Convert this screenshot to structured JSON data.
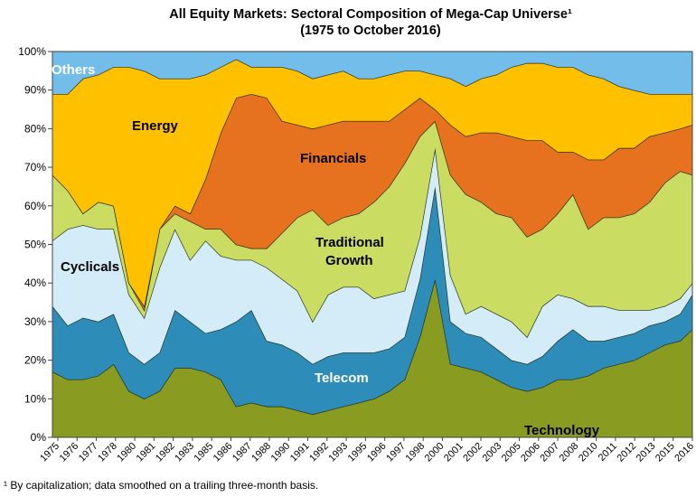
{
  "chart_data": {
    "type": "area",
    "stacked": true,
    "title": "All Equity Markets: Sectoral Composition of Mega-Cap Universe¹",
    "subtitle": "(1975 to October 2016)",
    "xlabel": "",
    "ylabel": "",
    "ylim": [
      0,
      100
    ],
    "yticks": [
      "0%",
      "10%",
      "20%",
      "30%",
      "40%",
      "50%",
      "60%",
      "70%",
      "80%",
      "90%",
      "100%"
    ],
    "xticks": [
      "1975",
      "1976",
      "1977",
      "1978",
      "1980",
      "1981",
      "1982",
      "1983",
      "1985",
      "1986",
      "1987",
      "1988",
      "1990",
      "1991",
      "1992",
      "1993",
      "1995",
      "1996",
      "1997",
      "1998",
      "2000",
      "2001",
      "2002",
      "2003",
      "2005",
      "2006",
      "2007",
      "2008",
      "2010",
      "2011",
      "2012",
      "2013",
      "2015",
      "2016"
    ],
    "x": [
      1975,
      1976,
      1977,
      1978,
      1979,
      1980,
      1981,
      1982,
      1983,
      1984,
      1985,
      1986,
      1987,
      1988,
      1989,
      1990,
      1991,
      1992,
      1993,
      1994,
      1995,
      1996,
      1997,
      1998,
      1999,
      2000,
      2001,
      2002,
      2003,
      2004,
      2005,
      2006,
      2007,
      2008,
      2009,
      2010,
      2011,
      2012,
      2013,
      2014,
      2015,
      2016,
      2016.8
    ],
    "series": [
      {
        "name": "Technology",
        "color": "#8A9B22",
        "values": [
          17,
          15,
          15,
          16,
          19,
          12,
          10,
          12,
          18,
          18,
          17,
          15,
          8,
          9,
          8,
          8,
          7,
          6,
          7,
          8,
          9,
          10,
          12,
          15,
          26,
          41,
          19,
          18,
          17,
          15,
          13,
          12,
          13,
          15,
          15,
          16,
          18,
          19,
          20,
          22,
          24,
          25,
          28
        ]
      },
      {
        "name": "Telecom",
        "color": "#2D8DB8",
        "values": [
          17,
          14,
          16,
          14,
          13,
          10,
          9,
          10,
          15,
          12,
          10,
          13,
          22,
          24,
          17,
          16,
          15,
          13,
          14,
          14,
          13,
          12,
          11,
          11,
          15,
          24,
          11,
          9,
          9,
          8,
          7,
          7,
          8,
          10,
          13,
          9,
          7,
          7,
          7,
          7,
          6,
          7,
          9
        ]
      },
      {
        "name": "Cyclicals",
        "color": "#D4ECF7",
        "values": [
          17,
          25,
          24,
          24,
          22,
          15,
          12,
          22,
          21,
          16,
          24,
          19,
          16,
          13,
          19,
          17,
          16,
          11,
          16,
          17,
          17,
          14,
          14,
          12,
          11,
          10,
          12,
          5,
          8,
          9,
          10,
          7,
          13,
          12,
          8,
          9,
          9,
          7,
          6,
          4,
          4,
          4,
          3
        ]
      },
      {
        "name": "Traditional Growth",
        "color": "#CADD62",
        "values": [
          17,
          10,
          3,
          7,
          6,
          3,
          2,
          10,
          4,
          10,
          3,
          7,
          4,
          3,
          5,
          12,
          19,
          29,
          18,
          18,
          19,
          25,
          28,
          33,
          26,
          7,
          26,
          31,
          27,
          26,
          27,
          26,
          20,
          21,
          27,
          20,
          23,
          24,
          25,
          28,
          32,
          33,
          28
        ]
      },
      {
        "name": "Financials",
        "color": "#E6711E",
        "values": [
          0,
          0,
          0,
          0,
          0,
          0,
          1,
          0,
          2,
          2,
          13,
          25,
          38,
          40,
          39,
          29,
          24,
          21,
          26,
          25,
          24,
          21,
          17,
          14,
          10,
          3,
          13,
          15,
          18,
          21,
          21,
          25,
          23,
          16,
          11,
          18,
          15,
          18,
          17,
          17,
          13,
          11,
          13
        ]
      },
      {
        "name": "Energy",
        "color": "#FFC000",
        "values": [
          21,
          25,
          35,
          33,
          36,
          56,
          61,
          39,
          33,
          35,
          27,
          17,
          10,
          7,
          8,
          14,
          14,
          13,
          13,
          13,
          11,
          11,
          12,
          10,
          7,
          9,
          12,
          13,
          14,
          15,
          18,
          20,
          20,
          22,
          22,
          22,
          21,
          16,
          15,
          11,
          10,
          9,
          8
        ]
      },
      {
        "name": "Others",
        "color": "#72BDEA",
        "values": [
          11,
          11,
          7,
          6,
          4,
          4,
          5,
          7,
          7,
          7,
          6,
          4,
          2,
          4,
          4,
          4,
          5,
          7,
          6,
          5,
          7,
          7,
          6,
          5,
          5,
          6,
          7,
          9,
          7,
          6,
          4,
          3,
          3,
          4,
          4,
          6,
          7,
          9,
          10,
          11,
          11,
          11,
          11
        ]
      }
    ],
    "series_labels": {
      "others": "Others",
      "energy": "Energy",
      "financials": "Financials",
      "traditional_growth_1": "Traditional",
      "traditional_growth_2": "Growth",
      "cyclicals": "Cyclicals",
      "telecom": "Telecom",
      "technology": "Technology"
    },
    "footnote": "¹ By capitalization; data smoothed on a trailing three-month basis."
  }
}
